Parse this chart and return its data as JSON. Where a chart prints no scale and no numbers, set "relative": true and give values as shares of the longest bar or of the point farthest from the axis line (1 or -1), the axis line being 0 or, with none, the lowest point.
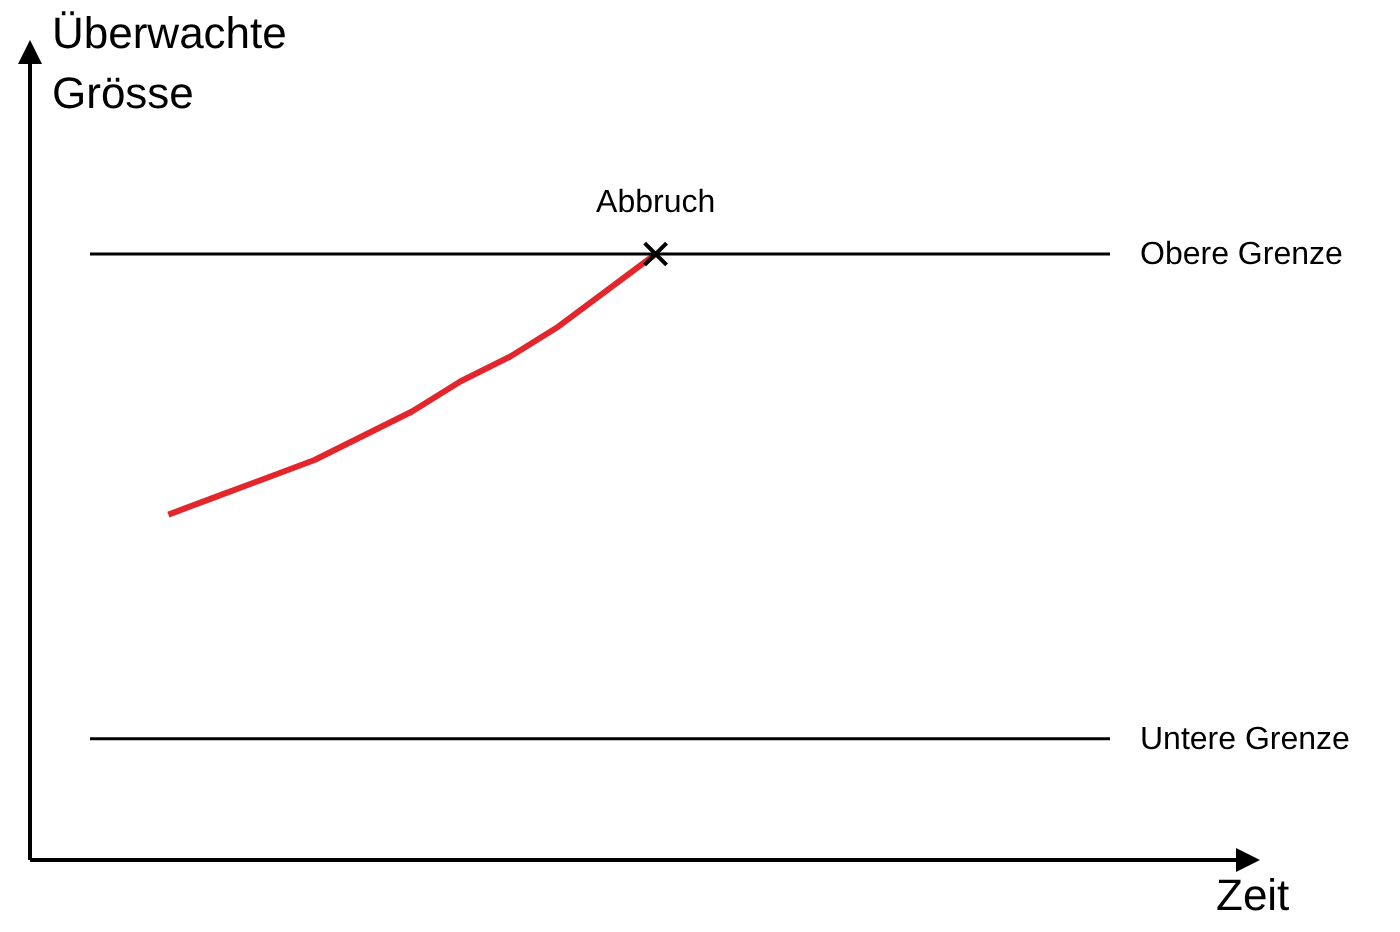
{
  "chart_data": {
    "type": "line",
    "relative": true,
    "ylabel": "Überwachte Grösse",
    "categories": [
      null,
      null,
      null,
      null,
      null,
      null,
      null,
      null,
      null,
      null,
      null
    ],
    "series": [
      {
        "color": "#e3262b",
        "values": [
          0.57,
          0.6,
          0.63,
          0.66,
          0.7,
          0.74,
          0.79,
          0.83,
          0.88,
          0.94,
          1
        ]
      }
    ],
    "ref_lines": [
      {
        "axis": "y",
        "value": 1,
        "label": "Obere Grenze",
        "color": "#000000"
      },
      {
        "axis": "y",
        "value": 0.2,
        "label": "Untere Grenze",
        "color": "#000000"
      }
    ],
    "annotations": [
      {
        "text": "Abbruch",
        "y": 1
      },
      "Zeit"
    ],
    "marker": "none"
  }
}
